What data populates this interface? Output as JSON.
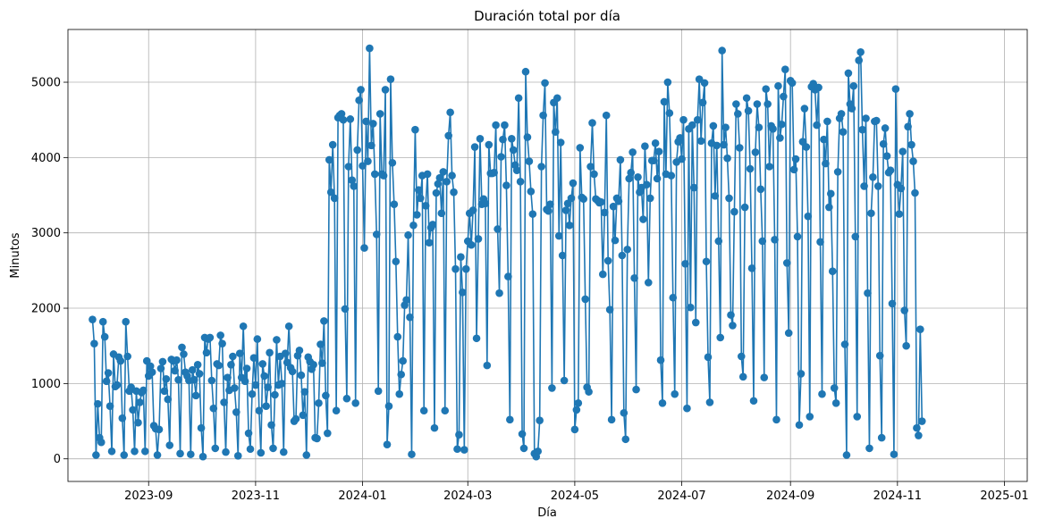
{
  "chart_data": {
    "type": "line",
    "title": "Duración total por día",
    "xlabel": "Día",
    "ylabel": "Minutos",
    "xlim": [
      "2023-07-17",
      "2025-01-14"
    ],
    "ylim": [
      -300,
      5700
    ],
    "grid": true,
    "x_ticks": [
      {
        "date": "2023-09-01",
        "label": "2023-09"
      },
      {
        "date": "2023-11-01",
        "label": "2023-11"
      },
      {
        "date": "2024-01-01",
        "label": "2024-01"
      },
      {
        "date": "2024-03-01",
        "label": "2024-03"
      },
      {
        "date": "2024-05-01",
        "label": "2024-05"
      },
      {
        "date": "2024-07-01",
        "label": "2024-07"
      },
      {
        "date": "2024-09-01",
        "label": "2024-09"
      },
      {
        "date": "2024-11-01",
        "label": "2024-11"
      },
      {
        "date": "2025-01-01",
        "label": "2025-01"
      }
    ],
    "y_ticks": [
      0,
      1000,
      2000,
      3000,
      4000,
      5000
    ],
    "series": [
      {
        "color": "#1f77b4",
        "marker": "circle",
        "start_date": "2023-07-31",
        "values": [
          1850,
          1530,
          50,
          730,
          280,
          220,
          1820,
          1620,
          1030,
          1140,
          700,
          100,
          1390,
          960,
          980,
          1350,
          1300,
          540,
          50,
          1820,
          1360,
          900,
          950,
          650,
          100,
          900,
          480,
          750,
          880,
          910,
          100,
          1300,
          1100,
          1230,
          1150,
          440,
          400,
          50,
          390,
          1200,
          1290,
          900,
          1060,
          790,
          180,
          1320,
          1300,
          1170,
          1310,
          1050,
          70,
          1480,
          1390,
          1150,
          1100,
          1040,
          60,
          1180,
          1050,
          840,
          1250,
          1130,
          410,
          30,
          1610,
          1410,
          1590,
          1610,
          1040,
          670,
          140,
          1260,
          1240,
          1640,
          1530,
          750,
          90,
          1080,
          910,
          1250,
          1360,
          940,
          620,
          40,
          1400,
          1080,
          1760,
          1030,
          1200,
          340,
          130,
          860,
          1340,
          980,
          1590,
          640,
          80,
          1260,
          1100,
          700,
          950,
          1410,
          450,
          140,
          850,
          1580,
          980,
          1360,
          1000,
          90,
          1400,
          1280,
          1760,
          1210,
          1160,
          500,
          530,
          1370,
          1440,
          1110,
          580,
          890,
          50,
          1350,
          1290,
          1190,
          1250,
          280,
          270,
          740,
          1520,
          1270,
          1830,
          840,
          340,
          3970,
          3540,
          4170,
          3460,
          640,
          4530,
          4560,
          4580,
          4500,
          1990,
          800,
          3880,
          4510,
          3700,
          3620,
          740,
          4100,
          4760,
          4900,
          3890,
          2800,
          4480,
          3950,
          5450,
          4160,
          4450,
          3780,
          2980,
          900,
          4580,
          3780,
          3760,
          4900,
          190,
          700,
          5040,
          3930,
          3380,
          2620,
          1620,
          860,
          1120,
          1300,
          2040,
          2110,
          2970,
          1880,
          60,
          3100,
          4370,
          3240,
          3570,
          3460,
          3760,
          640,
          3360,
          3780,
          2870,
          3070,
          3110,
          410,
          3530,
          3650,
          3730,
          3260,
          3810,
          640,
          3680,
          4290,
          4600,
          3760,
          3540,
          2520,
          130,
          320,
          2680,
          2210,
          120,
          2520,
          2890,
          3260,
          2840,
          3300,
          4140,
          1600,
          2920,
          4250,
          3380,
          3450,
          3390,
          1240,
          4170,
          3790,
          3790,
          3800,
          4430,
          3050,
          2200,
          4010,
          4240,
          4430,
          3630,
          2420,
          520,
          4250,
          4100,
          3900,
          3830,
          4790,
          3680,
          330,
          140,
          5140,
          4270,
          3950,
          3550,
          3250,
          70,
          30,
          100,
          510,
          3880,
          4560,
          4990,
          3310,
          3290,
          3380,
          940,
          4730,
          4340,
          4790,
          2960,
          4200,
          2700,
          1040,
          3300,
          3390,
          3100,
          3460,
          3660,
          390,
          650,
          740,
          4130,
          3470,
          3450,
          2120,
          950,
          890,
          3880,
          4460,
          3780,
          3450,
          3430,
          3400,
          3410,
          2450,
          3270,
          4560,
          2630,
          1980,
          520,
          3350,
          2900,
          3460,
          3420,
          3970,
          2700,
          610,
          260,
          2780,
          3720,
          3800,
          4070,
          2400,
          920,
          3740,
          3540,
          3600,
          3180,
          4150,
          3640,
          2340,
          3460,
          3960,
          3960,
          4190,
          3720,
          4080,
          1310,
          740,
          4740,
          3780,
          5000,
          4590,
          3760,
          2140,
          860,
          3940,
          4210,
          4260,
          3980,
          4500,
          2590,
          670,
          4380,
          2010,
          4430,
          3600,
          1810,
          4500,
          5040,
          4220,
          4730,
          4990,
          2620,
          1350,
          750,
          4190,
          4420,
          3490,
          4160,
          2890,
          1610,
          5420,
          4170,
          4400,
          3990,
          3460,
          1910,
          1770,
          3280,
          4710,
          4580,
          4130,
          1360,
          1090,
          3340,
          4790,
          4620,
          3850,
          2530,
          770,
          4070,
          4710,
          4400,
          3580,
          2890,
          1080,
          4910,
          4710,
          3880,
          4420,
          4380,
          2910,
          520,
          4950,
          4260,
          4440,
          4810,
          5170,
          2600,
          1670,
          5020,
          4990,
          3840,
          3980,
          2950,
          450,
          1130,
          4210,
          4650,
          4140,
          3220,
          560,
          4940,
          4980,
          4900,
          4430,
          4930,
          2880,
          860,
          4240,
          3920,
          4480,
          3340,
          3520,
          2490,
          940,
          740,
          3810,
          4520,
          4580,
          4340,
          1520,
          50,
          5120,
          4710,
          4650,
          4950,
          2950,
          560,
          5290,
          5400,
          4370,
          3620,
          4520,
          2200,
          140,
          3260,
          3740,
          4480,
          4490,
          3620,
          1370,
          280,
          4180,
          4390,
          4020,
          3800,
          3830,
          2060,
          60,
          4910,
          3640,
          3250,
          3590,
          4080,
          1970,
          1500,
          4410,
          4580,
          4170,
          3950,
          3530,
          410,
          310,
          1720,
          500
        ]
      }
    ]
  }
}
